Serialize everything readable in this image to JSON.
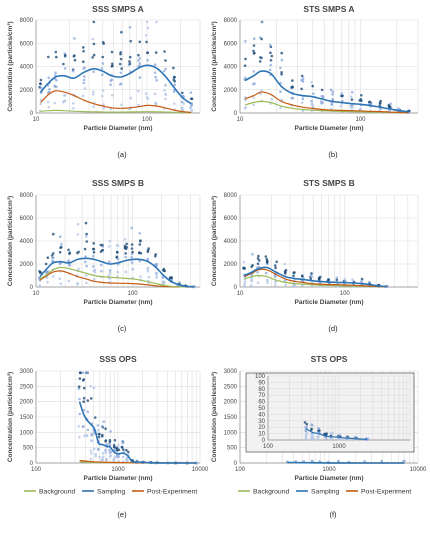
{
  "colors": {
    "background": "#9bbb59",
    "sampling": "#2e75b6",
    "post_experiment": "#c55a11",
    "sampling_points_light": "#b4c7e7",
    "sampling_points_mid": "#8faadc",
    "sampling_points_dark": "#1f4e79",
    "grid": "#dcdcdc"
  },
  "legend": {
    "items": [
      {
        "label": "Background",
        "color_key": "background"
      },
      {
        "label": "Sampling",
        "color_key": "sampling"
      },
      {
        "label": "Post-Experiment",
        "color_key": "post_experiment"
      }
    ]
  },
  "chart_data": [
    {
      "type": "line",
      "panel_label": "(a)",
      "title": "SSS SMPS A",
      "xlabel": "Particle Diameter (nm)",
      "ylabel": "Concentration (particles/cm³)",
      "xscale": "log",
      "xlim": [
        10,
        300
      ],
      "ylim": [
        0,
        8000
      ],
      "x_ticks": [
        10,
        100
      ],
      "y_ticks": [
        0,
        2000,
        4000,
        6000,
        8000
      ],
      "grid": true,
      "scatter_points": "many sampling measurements shown as light-to-dark blue points behind curves",
      "series": [
        {
          "name": "Sampling",
          "x": [
            11,
            13,
            15,
            18,
            22,
            27,
            33,
            40,
            48,
            58,
            70,
            85,
            100,
            120,
            145,
            175,
            210,
            250
          ],
          "values": [
            1800,
            2600,
            3100,
            3200,
            3000,
            3500,
            3800,
            3600,
            3200,
            3100,
            3400,
            3900,
            4100,
            3900,
            3200,
            2200,
            1300,
            800
          ]
        },
        {
          "name": "Post-Experiment",
          "x": [
            11,
            13,
            15,
            18,
            22,
            27,
            33,
            40,
            48,
            58,
            70,
            85,
            100,
            120,
            145,
            175,
            210,
            250
          ],
          "values": [
            900,
            1600,
            1900,
            1800,
            1500,
            1100,
            800,
            600,
            450,
            400,
            450,
            550,
            650,
            600,
            450,
            250,
            120,
            50
          ]
        },
        {
          "name": "Background",
          "x": [
            11,
            13,
            15,
            18,
            22,
            27,
            33,
            40,
            48,
            58,
            70,
            85,
            100,
            120,
            145,
            175,
            210,
            250
          ],
          "values": [
            150,
            200,
            220,
            200,
            150,
            120,
            100,
            90,
            80,
            80,
            90,
            100,
            110,
            100,
            90,
            60,
            40,
            20
          ]
        }
      ]
    },
    {
      "type": "line",
      "panel_label": "(b)",
      "title": "STS SMPS A",
      "xlabel": "Particle Diameter (nm)",
      "ylabel": "Concentration (particles/cm³)",
      "xscale": "log",
      "xlim": [
        10,
        300
      ],
      "ylim": [
        0,
        8000
      ],
      "x_ticks": [
        10,
        100
      ],
      "y_ticks": [
        0,
        2000,
        4000,
        6000,
        8000
      ],
      "grid": true,
      "series": [
        {
          "name": "Sampling",
          "x": [
            11,
            13,
            15,
            18,
            22,
            27,
            33,
            40,
            48,
            58,
            70,
            85,
            100,
            120,
            145,
            175,
            210,
            250
          ],
          "values": [
            2800,
            3200,
            3600,
            3400,
            2300,
            1700,
            1500,
            1400,
            1200,
            1000,
            900,
            800,
            750,
            650,
            500,
            350,
            200,
            100
          ]
        },
        {
          "name": "Post-Experiment",
          "x": [
            11,
            13,
            15,
            18,
            22,
            27,
            33,
            40,
            48,
            58,
            70,
            85,
            100,
            120,
            145,
            175,
            210,
            250
          ],
          "values": [
            1200,
            1500,
            1800,
            1600,
            1000,
            700,
            500,
            400,
            300,
            250,
            220,
            200,
            180,
            150,
            120,
            80,
            50,
            20
          ]
        },
        {
          "name": "Background",
          "x": [
            11,
            13,
            15,
            18,
            22,
            27,
            33,
            40,
            48,
            58,
            70,
            85,
            100,
            120,
            145,
            175,
            210,
            250
          ],
          "values": [
            700,
            900,
            1000,
            900,
            600,
            400,
            300,
            250,
            200,
            160,
            140,
            120,
            100,
            90,
            70,
            50,
            30,
            15
          ]
        }
      ]
    },
    {
      "type": "line",
      "panel_label": "(c)",
      "title": "SSS SMPS B",
      "xlabel": "Particle Diameter (nm)",
      "ylabel": "Concentration (particles/cm³)",
      "xscale": "log",
      "xlim": [
        10,
        500
      ],
      "ylim": [
        0,
        8000
      ],
      "x_ticks": [
        10,
        100
      ],
      "y_ticks": [
        0,
        2000,
        4000,
        6000,
        8000
      ],
      "grid": true,
      "series": [
        {
          "name": "Sampling",
          "x": [
            11,
            13,
            15,
            18,
            22,
            27,
            33,
            40,
            48,
            58,
            70,
            85,
            100,
            120,
            145,
            175,
            210,
            250,
            300,
            360,
            430
          ],
          "values": [
            900,
            1600,
            2100,
            2200,
            2100,
            2400,
            2500,
            2400,
            2200,
            2000,
            2100,
            2300,
            2400,
            2400,
            2200,
            1700,
            1000,
            500,
            200,
            60,
            20
          ]
        },
        {
          "name": "Background",
          "x": [
            11,
            13,
            15,
            18,
            22,
            27,
            33,
            40,
            48,
            58,
            70,
            85,
            100,
            120,
            145,
            175,
            210,
            250,
            300,
            360,
            430
          ],
          "values": [
            700,
            1100,
            1500,
            1700,
            1600,
            1400,
            1200,
            1000,
            900,
            850,
            800,
            750,
            700,
            600,
            450,
            300,
            150,
            60,
            20,
            10,
            5
          ]
        },
        {
          "name": "Post-Experiment",
          "x": [
            11,
            13,
            15,
            18,
            22,
            27,
            33,
            40,
            48,
            58,
            70,
            85,
            100,
            120,
            145,
            175,
            210,
            250,
            300,
            360,
            430
          ],
          "values": [
            600,
            1000,
            1300,
            1400,
            1200,
            900,
            700,
            500,
            400,
            350,
            330,
            320,
            300,
            250,
            180,
            100,
            50,
            20,
            10,
            5,
            2
          ]
        }
      ]
    },
    {
      "type": "line",
      "panel_label": "(d)",
      "title": "STS SMPS B",
      "xlabel": "Particle Diameter (nm)",
      "ylabel": "Concentration (particles/cm³)",
      "xscale": "log",
      "xlim": [
        10,
        500
      ],
      "ylim": [
        0,
        8000
      ],
      "x_ticks": [
        10,
        100
      ],
      "y_ticks": [
        0,
        2000,
        4000,
        6000,
        8000
      ],
      "grid": true,
      "series": [
        {
          "name": "Sampling",
          "x": [
            11,
            13,
            15,
            18,
            22,
            27,
            33,
            40,
            48,
            58,
            70,
            85,
            100,
            120,
            145,
            175,
            210,
            250
          ],
          "values": [
            1000,
            1300,
            1600,
            1700,
            1300,
            900,
            750,
            650,
            550,
            480,
            430,
            400,
            380,
            350,
            300,
            200,
            100,
            40
          ]
        },
        {
          "name": "Post-Experiment",
          "x": [
            11,
            13,
            15,
            18,
            22,
            27,
            33,
            40,
            48,
            58,
            70,
            85,
            100,
            120,
            145,
            175,
            210,
            250
          ],
          "values": [
            900,
            1200,
            1500,
            1500,
            1100,
            700,
            500,
            400,
            300,
            250,
            220,
            200,
            180,
            150,
            120,
            80,
            40,
            15
          ]
        },
        {
          "name": "Background",
          "x": [
            11,
            13,
            15,
            18,
            22,
            27,
            33,
            40,
            48,
            58,
            70,
            85,
            100,
            120,
            145,
            175,
            210,
            250
          ],
          "values": [
            700,
            900,
            1000,
            900,
            600,
            400,
            300,
            250,
            200,
            160,
            140,
            120,
            100,
            90,
            70,
            50,
            25,
            10
          ]
        }
      ]
    },
    {
      "type": "line",
      "panel_label": "(e)",
      "title": "SSS OPS",
      "xlabel": "Particle Diameter (nm)",
      "ylabel": "Concentration (particles/cm³)",
      "xscale": "log",
      "xlim": [
        100,
        10000
      ],
      "ylim": [
        0,
        3000
      ],
      "x_ticks": [
        100,
        1000,
        10000
      ],
      "y_ticks": [
        0,
        500,
        1000,
        1500,
        2000,
        2500,
        3000
      ],
      "grid": true,
      "series": [
        {
          "name": "Sampling",
          "x": [
            340,
            380,
            420,
            470,
            520,
            580,
            650,
            720,
            800,
            900,
            1000,
            1150,
            1300,
            1500,
            1700,
            2000,
            2500,
            3000,
            4000,
            5000,
            7000,
            9000
          ],
          "values": [
            2000,
            1600,
            1400,
            1250,
            1100,
            650,
            600,
            550,
            520,
            350,
            300,
            320,
            250,
            50,
            30,
            20,
            10,
            5,
            3,
            2,
            1,
            0
          ]
        },
        {
          "name": "Post-Experiment",
          "x": [
            340,
            420,
            520,
            650,
            800,
            1000,
            1300,
            1700,
            2500,
            4000,
            7000,
            9000
          ],
          "values": [
            80,
            60,
            40,
            30,
            20,
            15,
            10,
            5,
            2,
            1,
            0,
            0
          ]
        },
        {
          "name": "Background",
          "x": [
            340,
            420,
            520,
            650,
            800,
            1000,
            1300,
            1700,
            2500,
            4000,
            7000,
            9000
          ],
          "values": [
            40,
            30,
            20,
            15,
            10,
            8,
            5,
            3,
            1,
            0,
            0,
            0
          ]
        }
      ]
    },
    {
      "type": "line",
      "panel_label": "(f)",
      "title": "STS OPS",
      "xlabel": "Particle Diameter (nm)",
      "ylabel": "Concentration (particles/cm³)",
      "xscale": "log",
      "xlim": [
        100,
        10000
      ],
      "ylim": [
        0,
        3000
      ],
      "x_ticks": [
        100,
        1000,
        10000
      ],
      "y_ticks": [
        0,
        500,
        1000,
        1500,
        2000,
        2500,
        3000
      ],
      "grid": true,
      "series": [
        {
          "name": "Sampling",
          "x": [
            340,
            420,
            520,
            650,
            800,
            1000,
            1300,
            1700,
            2500,
            4000,
            7000
          ],
          "values": [
            18,
            12,
            10,
            6,
            5,
            4,
            3,
            2,
            1,
            0,
            0
          ]
        },
        {
          "name": "Post-Experiment",
          "x": [
            340,
            420,
            520,
            650,
            800,
            1000,
            1300,
            1700,
            2500,
            4000,
            7000
          ],
          "values": [
            6,
            4,
            3,
            2,
            2,
            1,
            1,
            0,
            0,
            0,
            0
          ]
        },
        {
          "name": "Background",
          "x": [
            340,
            420,
            520,
            650,
            800,
            1000,
            1300,
            1700,
            2500,
            4000,
            7000
          ],
          "values": [
            3,
            2,
            2,
            1,
            1,
            1,
            0,
            0,
            0,
            0,
            0
          ]
        }
      ],
      "inset": {
        "xscale": "log",
        "xlim": [
          100,
          10000
        ],
        "ylim": [
          0,
          100
        ],
        "x_ticks": [
          100,
          1000
        ],
        "y_ticks": [
          0,
          10,
          20,
          30,
          40,
          50,
          60,
          70,
          80,
          90,
          100
        ],
        "series": [
          {
            "name": "Sampling",
            "x": [
              340,
              420,
              520,
              650,
              800,
              1000,
              1300,
              1700,
              2500
            ],
            "values": [
              18,
              12,
              10,
              6,
              5,
              4,
              3,
              2,
              1
            ]
          }
        ]
      }
    }
  ]
}
